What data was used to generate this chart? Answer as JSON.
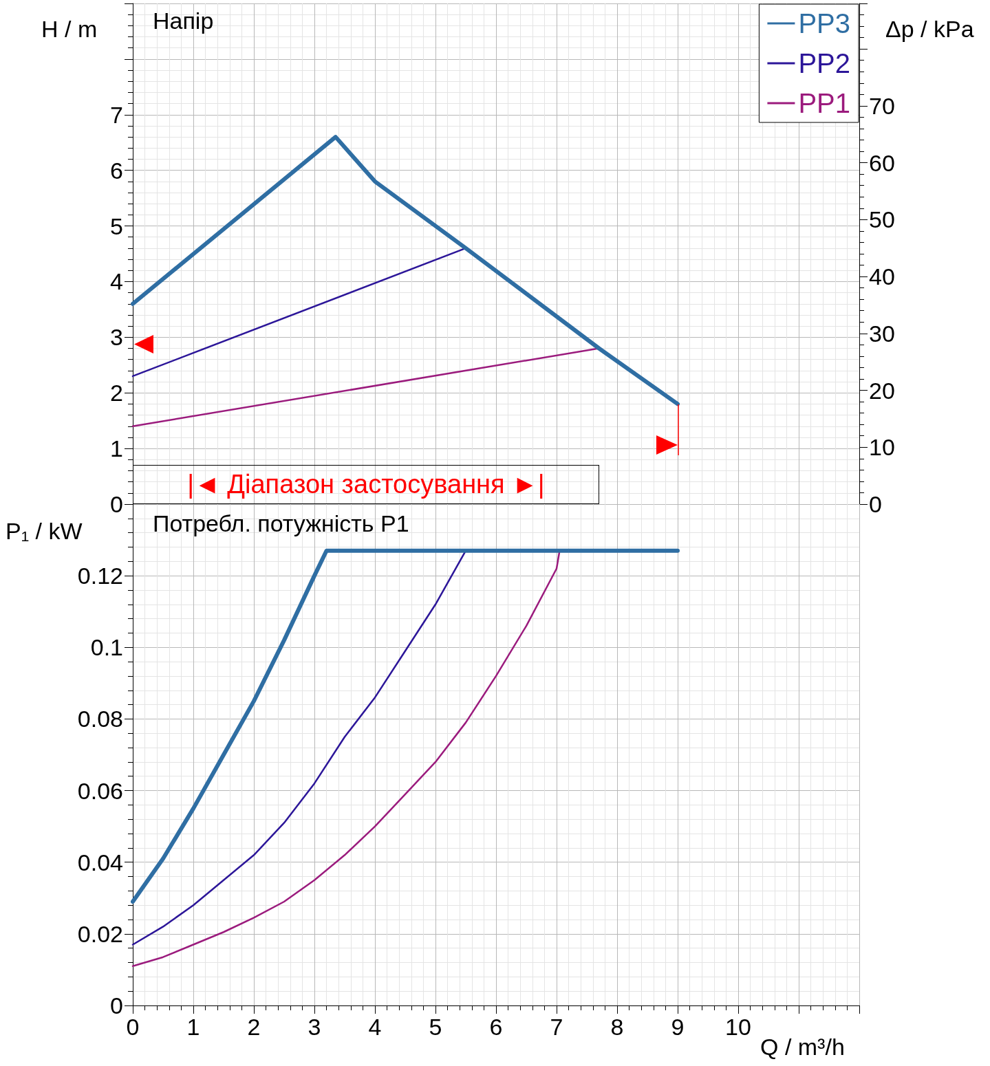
{
  "chart_data": [
    {
      "type": "line",
      "title": "Напір",
      "ylabel": "H / m",
      "y2label": "Δp / kPa",
      "annotations": [
        "|◄ Діапазон застосування ►|"
      ],
      "xlim": [
        0,
        12
      ],
      "xticks": [
        0,
        1,
        2,
        3,
        4,
        5,
        6,
        7,
        8,
        9,
        10
      ],
      "ylim": [
        0,
        9
      ],
      "yticks": [
        0,
        1,
        2,
        3,
        4,
        5,
        6,
        7
      ],
      "y2lim": [
        0,
        88
      ],
      "y2ticks": [
        0,
        10,
        20,
        30,
        40,
        50,
        60,
        70
      ],
      "tick_labels": "y",
      "grid": true,
      "legend": "top right",
      "line_style": "solid",
      "series": [
        {
          "name": "PP3",
          "color": "#2f6ea3",
          "x": [
            0,
            3.35,
            4,
            5.5,
            7.7,
            9
          ],
          "values": [
            3.6,
            6.6,
            5.8,
            4.6,
            2.8,
            1.8
          ]
        },
        {
          "name": "PP2",
          "color": "#2c1699",
          "x": [
            0,
            5.5
          ],
          "values": [
            2.3,
            4.6
          ]
        },
        {
          "name": "PP1",
          "color": "#9b1b7d",
          "x": [
            0,
            7.7
          ],
          "values": [
            1.4,
            2.8
          ]
        }
      ]
    },
    {
      "type": "line",
      "title": "Потребл. потужність P1",
      "ylabel": "P₁ / kW",
      "xlabel": "Q / m³/h",
      "xlim": [
        0,
        12
      ],
      "xticks": [
        0,
        1,
        2,
        3,
        4,
        5,
        6,
        7,
        8,
        9,
        10
      ],
      "ylim": [
        0,
        0.14
      ],
      "yticks": [
        0,
        0.02,
        0.04,
        0.06,
        0.08,
        0.1,
        0.12
      ],
      "grid": true,
      "line_style": "solid",
      "series": [
        {
          "color": "#2f6ea3",
          "x": [
            0,
            0.5,
            1,
            1.5,
            2,
            2.5,
            3,
            3.2,
            9
          ],
          "values": [
            0.029,
            0.041,
            0.055,
            0.07,
            0.085,
            0.102,
            0.12,
            0.127,
            0.127
          ]
        },
        {
          "color": "#2c1699",
          "x": [
            0,
            0.5,
            1,
            1.5,
            2,
            2.5,
            3,
            3.5,
            4,
            4.5,
            5,
            5.5
          ],
          "values": [
            0.017,
            0.022,
            0.028,
            0.035,
            0.042,
            0.051,
            0.062,
            0.075,
            0.086,
            0.099,
            0.112,
            0.127
          ]
        },
        {
          "color": "#9b1b7d",
          "x": [
            0,
            0.5,
            1,
            1.5,
            2,
            2.5,
            3,
            3.5,
            4,
            4.5,
            5,
            5.5,
            6,
            6.5,
            7,
            7.05
          ],
          "values": [
            0.011,
            0.0135,
            0.017,
            0.0205,
            0.0245,
            0.029,
            0.035,
            0.042,
            0.05,
            0.059,
            0.068,
            0.079,
            0.092,
            0.106,
            0.122,
            0.127
          ]
        }
      ]
    }
  ]
}
